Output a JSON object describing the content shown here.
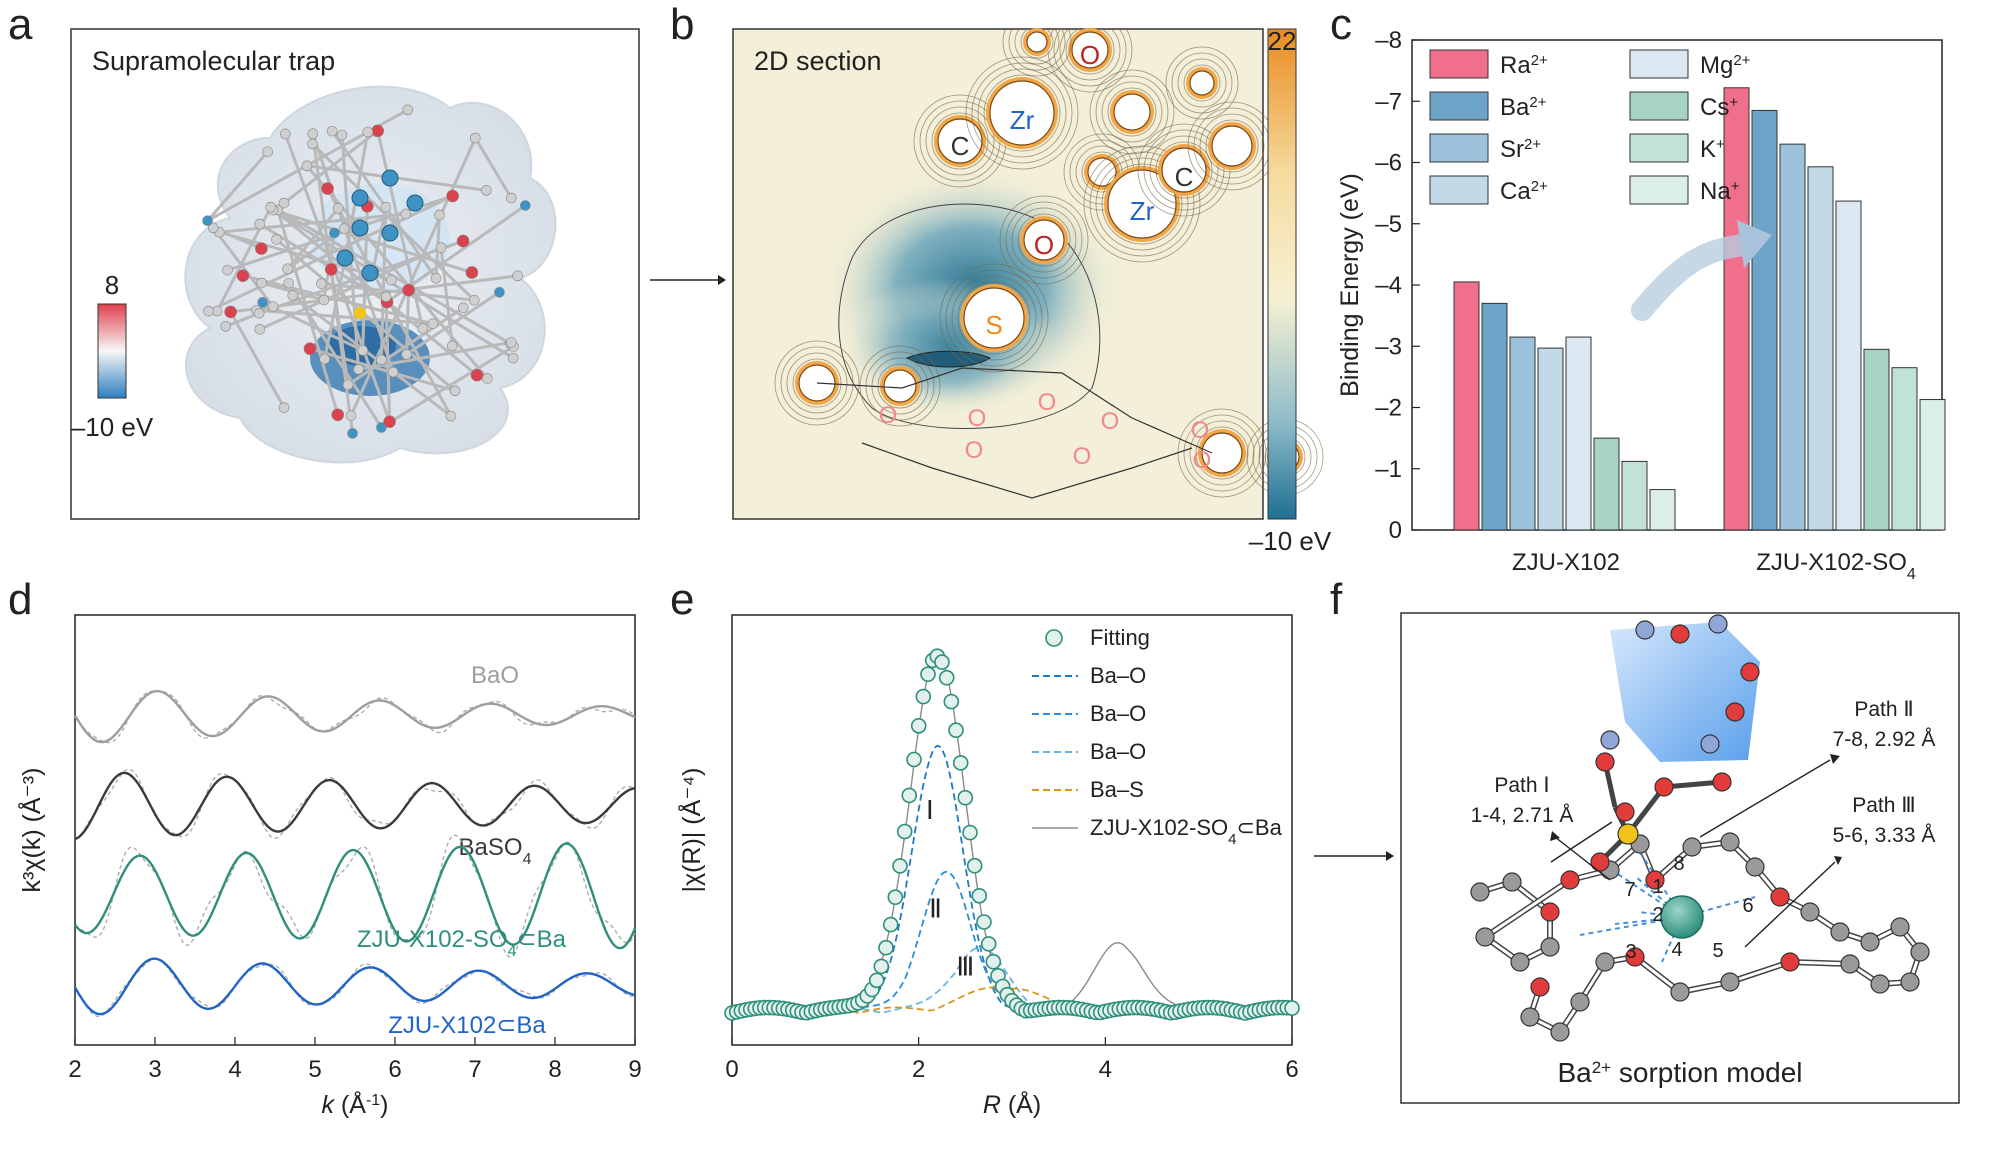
{
  "panels": {
    "a": {
      "letter": "a",
      "title": "Supramolecular trap",
      "colorbar": {
        "max_label": "8",
        "min_label": "–10 eV",
        "max_value": 8,
        "min_value": -10,
        "colors": {
          "high": "#e0414d",
          "mid": "#f7f7f7",
          "low": "#2d7fbf"
        }
      }
    },
    "b": {
      "letter": "b",
      "title": "2D section",
      "colorbar": {
        "max_label": "22",
        "min_label": "–10 eV",
        "max_value": 22,
        "min_value": -10,
        "colors": {
          "high": "#e98b20",
          "mid": "#f6f1d2",
          "low": "#1f6f93"
        }
      },
      "atom_labels": [
        {
          "text": "C",
          "kind": "C"
        },
        {
          "text": "Zr",
          "kind": "Zr"
        },
        {
          "text": "O",
          "kind": "O"
        },
        {
          "text": "O",
          "kind": "O"
        },
        {
          "text": "Zr",
          "kind": "Zr"
        },
        {
          "text": "C",
          "kind": "C"
        },
        {
          "text": "S",
          "kind": "S"
        }
      ],
      "crown_o_labels": [
        "O",
        "O",
        "O",
        "O",
        "O",
        "O",
        "O",
        "O"
      ]
    },
    "c": {
      "letter": "c"
    },
    "d": {
      "letter": "d"
    },
    "e": {
      "letter": "e"
    },
    "f": {
      "letter": "f",
      "caption": "Ba",
      "caption_sup": "2+",
      "caption_rest": " sorption model",
      "paths": [
        {
          "name": "Path Ⅰ",
          "detail": "1-4, 2.71 Å"
        },
        {
          "name": "Path Ⅱ",
          "detail": "7-8, 2.92 Å"
        },
        {
          "name": "Path Ⅲ",
          "detail": "5-6, 3.33 Å"
        }
      ],
      "atom_numbers": [
        "1",
        "2",
        "3",
        "4",
        "5",
        "6",
        "7",
        "8"
      ],
      "colors": {
        "oxygen": "#e23b3b",
        "carbon": "#9a9a9a",
        "sulfur": "#f0c419",
        "zr": "#8fa6d6",
        "ba": "#3e9c8d"
      }
    }
  },
  "chart_data": [
    {
      "id": "c",
      "type": "bar",
      "title": "",
      "ylabel": "Binding Energy (eV)",
      "xlabel": "",
      "ylim": [
        0,
        -8
      ],
      "yticks": [
        0,
        -1,
        -2,
        -3,
        -4,
        -5,
        -6,
        -7,
        -8
      ],
      "ytick_labels": [
        "0",
        "–1",
        "–2",
        "–3",
        "–4",
        "–5",
        "–6",
        "–7",
        "–8"
      ],
      "categories": [
        "ZJU-X102",
        "ZJU-X102-SO4"
      ],
      "category_labels": [
        {
          "text": "ZJU-X102",
          "sub": ""
        },
        {
          "text": "ZJU-X102-SO",
          "sub": "4"
        }
      ],
      "legend_position": "top-left",
      "series": [
        {
          "name": "Ra",
          "sup": "2+",
          "color": "#f06f8b",
          "values": [
            -4.05,
            -7.22
          ]
        },
        {
          "name": "Ba",
          "sup": "2+",
          "color": "#6fa4c9",
          "values": [
            -3.7,
            -6.85
          ]
        },
        {
          "name": "Sr",
          "sup": "2+",
          "color": "#9cc3db",
          "values": [
            -3.15,
            -6.3
          ]
        },
        {
          "name": "Ca",
          "sup": "2+",
          "color": "#c2d9e8",
          "values": [
            -2.97,
            -5.93
          ]
        },
        {
          "name": "Mg",
          "sup": "2+",
          "color": "#dbe8f1",
          "values": [
            -3.15,
            -5.37
          ]
        },
        {
          "name": "Cs",
          "sup": "+",
          "color": "#a7d3c6",
          "values": [
            -1.5,
            -2.95
          ]
        },
        {
          "name": "K",
          "sup": "+",
          "color": "#c2e1d7",
          "values": [
            -1.12,
            -2.65
          ]
        },
        {
          "name": "Na",
          "sup": "+",
          "color": "#dbeee8",
          "values": [
            -0.66,
            -2.13
          ]
        }
      ]
    },
    {
      "id": "d",
      "type": "line",
      "xlabel": "k (Å⁻¹)",
      "xlabel_main": "k",
      "xlabel_unit": " (Å",
      "xlabel_sup": "-1",
      "xlabel_end": ")",
      "ylabel": "k³χ(k) (Å⁻³)",
      "xlim": [
        2,
        9
      ],
      "xticks": [
        2,
        3,
        4,
        5,
        6,
        7,
        8,
        9
      ],
      "xtick_labels": [
        "2",
        "3",
        "4",
        "5",
        "6",
        "7",
        "8",
        "9"
      ],
      "series": [
        {
          "name": "BaO",
          "label": "BaO",
          "label_sub": "",
          "color": "#9e9e9e",
          "offset": 3.0,
          "amplitude": 0.32,
          "frequency": 0.72,
          "phase": 0.4,
          "decay": 0.18,
          "noise": 0.12
        },
        {
          "name": "BaSO4",
          "label": "BaSO",
          "label_sub": "4",
          "color": "#3b3b3b",
          "offset": 2.0,
          "amplitude": 0.38,
          "frequency": 0.78,
          "phase": 1.3,
          "decay": 0.1,
          "noise": 0.18
        },
        {
          "name": "ZJU-X102-SO4⊂Ba",
          "label": "ZJU-X102-SO",
          "label_sub": "4",
          "label_end": "⊂Ba",
          "color": "#2e8f7c",
          "offset": 1.0,
          "amplitude": 0.42,
          "frequency": 0.75,
          "phase": 0.9,
          "decay": -0.05,
          "noise": 0.38
        },
        {
          "name": "ZJU-X102⊂Ba",
          "label": "ZJU-X102⊂Ba",
          "label_sub": "",
          "color": "#1f64c6",
          "offset": 0.0,
          "amplitude": 0.34,
          "frequency": 0.74,
          "phase": 0.2,
          "decay": 0.15,
          "noise": 0.1
        }
      ]
    },
    {
      "id": "e",
      "type": "line",
      "xlabel": "R (Å)",
      "xlabel_main": "R",
      "xlabel_unit": " (Å)",
      "ylabel": "|χ(R)| (Å⁻⁴)",
      "xlim": [
        0,
        6
      ],
      "xticks": [
        0,
        2,
        4,
        6
      ],
      "xtick_labels": [
        "0",
        "2",
        "4",
        "6"
      ],
      "peak_labels": [
        "Ⅰ",
        "Ⅱ",
        "Ⅲ"
      ],
      "legend_position": "top-right",
      "series": [
        {
          "name": "Fitting",
          "label": "Fitting",
          "color": "#2e8f7c",
          "style": "circles",
          "peak_x": 2.2,
          "peak_y": 5.2,
          "width": 0.42
        },
        {
          "name": "Ba–O",
          "label": "Ba–O",
          "color": "#1f78c8",
          "style": "dashed",
          "peak_x": 2.2,
          "peak_y": 3.9,
          "width": 0.38
        },
        {
          "name": "Ba–O",
          "label": "Ba–O",
          "color": "#2a8fd6",
          "style": "dashed",
          "peak_x": 2.3,
          "peak_y": 2.0,
          "width": 0.38
        },
        {
          "name": "Ba–O",
          "label": "Ba–O",
          "color": "#6ab5e6",
          "style": "dashed",
          "peak_x": 2.65,
          "peak_y": 0.9,
          "width": 0.4
        },
        {
          "name": "Ba–S",
          "label": "Ba–S",
          "color": "#d9961f",
          "style": "dashed",
          "peak_x": 2.9,
          "peak_y": 0.35,
          "width": 0.5
        },
        {
          "name": "ZJU-X102-SO4⊂Ba",
          "label": "ZJU-X102-SO",
          "label_sub": "4",
          "label_end": "⊂Ba",
          "color": "#8a8a8a",
          "style": "solid",
          "peak_x": 2.2,
          "peak_y": 5.2,
          "width": 0.42,
          "second_peak_x": 4.15,
          "second_peak_y": 1.0
        }
      ]
    }
  ]
}
